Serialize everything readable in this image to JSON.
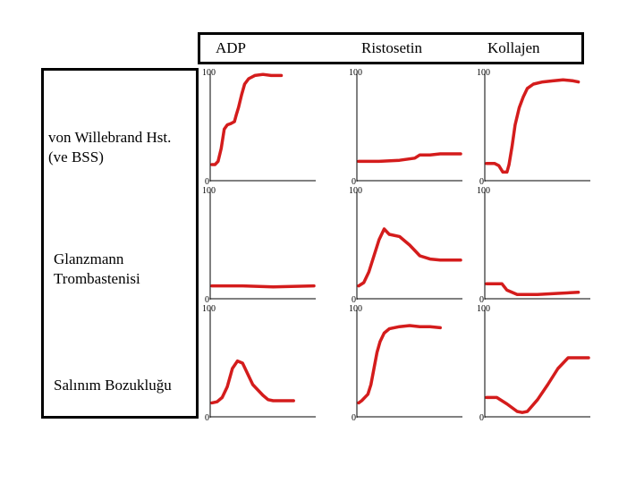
{
  "columns": [
    "ADP",
    "Ristosetin",
    "Kollajen"
  ],
  "rows": [
    [
      "von Willebrand Hst.",
      "(ve BSS)"
    ],
    [
      "Glanzmann",
      "Trombastenisi"
    ],
    [
      "Salınım Bozukluğu"
    ]
  ],
  "chart_data": {
    "type": "line",
    "title": "",
    "xlabel": "",
    "ylabel": "",
    "ylim": [
      0,
      100
    ],
    "y_ticks": [
      "0",
      "100"
    ],
    "curve_color": "#d41c1c",
    "panels": [
      {
        "row": "von Willebrand Hst. (ve BSS)",
        "column": "ADP",
        "values": [
          [
            0,
            15
          ],
          [
            3,
            15
          ],
          [
            6,
            18
          ],
          [
            9,
            30
          ],
          [
            12,
            48
          ],
          [
            15,
            52
          ],
          [
            18,
            53
          ],
          [
            22,
            55
          ],
          [
            24,
            62
          ],
          [
            26,
            68
          ],
          [
            29,
            80
          ],
          [
            32,
            90
          ],
          [
            36,
            95
          ],
          [
            42,
            98
          ],
          [
            50,
            99
          ],
          [
            58,
            98
          ],
          [
            68,
            98
          ]
        ]
      },
      {
        "row": "von Willebrand Hst. (ve BSS)",
        "column": "Ristosetin",
        "values": [
          [
            0,
            18
          ],
          [
            20,
            18
          ],
          [
            40,
            19
          ],
          [
            55,
            21
          ],
          [
            60,
            24
          ],
          [
            70,
            24
          ],
          [
            80,
            25
          ],
          [
            100,
            25
          ]
        ]
      },
      {
        "row": "von Willebrand Hst. (ve BSS)",
        "column": "Kollajen",
        "values": [
          [
            0,
            16
          ],
          [
            8,
            16
          ],
          [
            12,
            14
          ],
          [
            16,
            8
          ],
          [
            20,
            8
          ],
          [
            22,
            15
          ],
          [
            25,
            32
          ],
          [
            28,
            52
          ],
          [
            32,
            68
          ],
          [
            36,
            78
          ],
          [
            40,
            86
          ],
          [
            46,
            90
          ],
          [
            55,
            92
          ],
          [
            65,
            93
          ],
          [
            75,
            94
          ],
          [
            85,
            93
          ],
          [
            90,
            92
          ]
        ]
      },
      {
        "row": "Glanzmann Trombastenisi",
        "column": "ADP",
        "values": [
          [
            0,
            12
          ],
          [
            30,
            12
          ],
          [
            60,
            11
          ],
          [
            100,
            12
          ]
        ]
      },
      {
        "row": "Glanzmann Trombastenisi",
        "column": "Ristosetin",
        "values": [
          [
            0,
            12
          ],
          [
            5,
            15
          ],
          [
            10,
            25
          ],
          [
            15,
            40
          ],
          [
            20,
            55
          ],
          [
            25,
            65
          ],
          [
            30,
            60
          ],
          [
            40,
            58
          ],
          [
            50,
            50
          ],
          [
            60,
            40
          ],
          [
            70,
            37
          ],
          [
            80,
            36
          ],
          [
            100,
            36
          ]
        ]
      },
      {
        "row": "Glanzmann Trombastenisi",
        "column": "Kollajen",
        "values": [
          [
            0,
            14
          ],
          [
            15,
            14
          ],
          [
            20,
            8
          ],
          [
            30,
            4
          ],
          [
            50,
            4
          ],
          [
            70,
            5
          ],
          [
            90,
            6
          ]
        ]
      },
      {
        "row": "Salınım Bozukluğu",
        "column": "ADP",
        "values": [
          [
            0,
            13
          ],
          [
            5,
            14
          ],
          [
            10,
            18
          ],
          [
            15,
            28
          ],
          [
            20,
            45
          ],
          [
            25,
            52
          ],
          [
            30,
            50
          ],
          [
            35,
            40
          ],
          [
            40,
            30
          ],
          [
            45,
            25
          ],
          [
            50,
            20
          ],
          [
            55,
            16
          ],
          [
            60,
            15
          ],
          [
            70,
            15
          ],
          [
            80,
            15
          ]
        ]
      },
      {
        "row": "Salınım Bozukluğu",
        "column": "Ristosetin",
        "values": [
          [
            0,
            13
          ],
          [
            3,
            15
          ],
          [
            6,
            18
          ],
          [
            9,
            21
          ],
          [
            12,
            30
          ],
          [
            15,
            45
          ],
          [
            18,
            60
          ],
          [
            21,
            70
          ],
          [
            25,
            78
          ],
          [
            30,
            82
          ],
          [
            40,
            84
          ],
          [
            50,
            85
          ],
          [
            60,
            84
          ],
          [
            70,
            84
          ],
          [
            80,
            83
          ]
        ]
      },
      {
        "row": "Salınım Bozukluğu",
        "column": "Kollajen",
        "values": [
          [
            0,
            18
          ],
          [
            10,
            18
          ],
          [
            20,
            12
          ],
          [
            30,
            5
          ],
          [
            35,
            4
          ],
          [
            40,
            5
          ],
          [
            50,
            16
          ],
          [
            60,
            30
          ],
          [
            70,
            45
          ],
          [
            80,
            55
          ],
          [
            88,
            55
          ],
          [
            100,
            55
          ]
        ]
      }
    ]
  }
}
